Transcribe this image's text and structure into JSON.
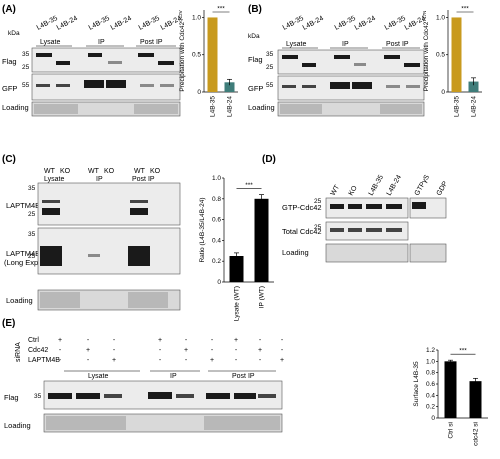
{
  "panels": {
    "A": {
      "label": "(A)",
      "kda": "kDa",
      "lanes": [
        "L4B-35",
        "L4B-24",
        "L4B-35",
        "L4B-24",
        "L4B-35",
        "L4B-24"
      ],
      "groups": [
        "Lysate",
        "IP",
        "Post IP"
      ],
      "rows": [
        "Flag",
        "GFP",
        "Loading"
      ],
      "markers": [
        "35",
        "25",
        "55"
      ]
    },
    "B": {
      "label": "(B)",
      "kda": "kDa",
      "lanes": [
        "L4B-35",
        "L4B-24",
        "L4B-35",
        "L4B-24",
        "L4B-35",
        "L4B-24"
      ],
      "groups": [
        "Lysate",
        "IP",
        "Post IP"
      ],
      "rows": [
        "Flag",
        "GFP",
        "Loading"
      ],
      "markers": [
        "35",
        "25",
        "55"
      ]
    },
    "C": {
      "label": "(C)",
      "lanes": [
        "WT",
        "KO",
        "WT",
        "KO",
        "WT",
        "KO"
      ],
      "groups": [
        "Lysate",
        "IP",
        "Post IP"
      ],
      "rows": [
        "LAPTM4B",
        "LAPTM4B",
        "(Long Exp)",
        "Loading"
      ],
      "markers": [
        "35",
        "25",
        "35",
        "25"
      ]
    },
    "D": {
      "label": "(D)",
      "lanes": [
        "WT",
        "KO",
        "L4B-35",
        "L4B-24",
        "GTPγS",
        "GDP"
      ],
      "rows": [
        "GTP-Cdc42",
        "Total Cdc42",
        "Loading"
      ],
      "markers": [
        "25",
        "25"
      ]
    },
    "E": {
      "label": "(E)",
      "sirna": "siRNA",
      "conditions": [
        "Ctrl",
        "Cdc42",
        "LAPTM4B"
      ],
      "signs": [
        [
          "+",
          "-",
          "-",
          "+",
          "-",
          "-",
          "+",
          "-",
          "-"
        ],
        [
          "-",
          "+",
          "-",
          "-",
          "+",
          "-",
          "-",
          "+",
          "-"
        ],
        [
          "-",
          "-",
          "+",
          "-",
          "-",
          "+",
          "-",
          "-",
          "+"
        ]
      ],
      "groups": [
        "Lysate",
        "IP",
        "Post IP"
      ],
      "rows": [
        "Flag",
        "Loading"
      ],
      "markers": [
        "35"
      ]
    }
  },
  "chart_data": [
    {
      "panel": "A",
      "type": "bar",
      "categories": [
        "L4B-35",
        "L4B-24"
      ],
      "values": [
        1.0,
        0.13
      ],
      "errors": [
        0.0,
        0.04
      ],
      "colors": [
        "#c89a1e",
        "#3f7d7a"
      ],
      "ylabel": "Precipitation with Cdc42",
      "ylabel_sup": "Q12V",
      "ylim": [
        0,
        1.1
      ],
      "yticks": [
        "0",
        "0.5",
        "1.0"
      ],
      "significance": "***"
    },
    {
      "panel": "B",
      "type": "bar",
      "categories": [
        "L4B-35",
        "L4B-24"
      ],
      "values": [
        1.0,
        0.14
      ],
      "errors": [
        0.0,
        0.05
      ],
      "colors": [
        "#c89a1e",
        "#3f7d7a"
      ],
      "ylabel": "Precipitation with Cdc42",
      "ylabel_sup": "T17N",
      "ylim": [
        0,
        1.1
      ],
      "yticks": [
        "0",
        "0.5",
        "1.0"
      ],
      "significance": "***"
    },
    {
      "panel": "C",
      "type": "bar",
      "categories": [
        "Lysate (WT)",
        "IP (WT)"
      ],
      "values": [
        0.25,
        0.8
      ],
      "errors": [
        0.03,
        0.04
      ],
      "colors": [
        "#000000",
        "#000000"
      ],
      "ylabel": "Ratio (L4B-35/L4B-24)",
      "ylim": [
        0,
        1.0
      ],
      "yticks": [
        "0",
        "0.2",
        "0.4",
        "0.6",
        "0.8",
        "1.0"
      ],
      "significance": "***"
    },
    {
      "panel": "E",
      "type": "bar",
      "categories": [
        "Ctrl si",
        "cdc42 si"
      ],
      "values": [
        1.0,
        0.65
      ],
      "errors": [
        0.02,
        0.05
      ],
      "colors": [
        "#000000",
        "#000000"
      ],
      "ylabel": "Surface L4B-35",
      "ylim": [
        0,
        1.2
      ],
      "yticks": [
        "0",
        "0.2",
        "0.4",
        "0.6",
        "0.8",
        "1.0",
        "1.2"
      ],
      "significance": "***"
    }
  ]
}
